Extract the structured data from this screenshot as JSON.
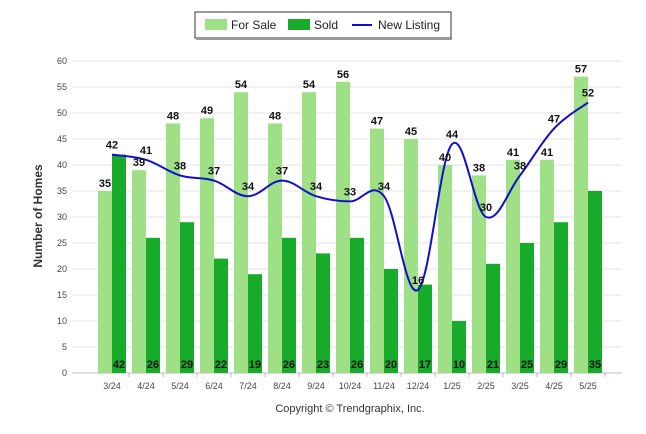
{
  "chart_data": {
    "type": "bar",
    "categories": [
      "3/24",
      "4/24",
      "5/24",
      "6/24",
      "7/24",
      "8/24",
      "9/24",
      "10/24",
      "11/24",
      "12/24",
      "1/25",
      "2/25",
      "3/25",
      "4/25",
      "5/25"
    ],
    "series": [
      {
        "name": "For Sale",
        "kind": "bar",
        "color": "#9fdf86",
        "values": [
          35,
          39,
          48,
          49,
          54,
          48,
          54,
          56,
          47,
          45,
          40,
          38,
          41,
          41,
          57
        ]
      },
      {
        "name": "Sold",
        "kind": "bar",
        "color": "#18aa2a",
        "values": [
          42,
          26,
          29,
          22,
          19,
          26,
          23,
          26,
          20,
          17,
          10,
          21,
          25,
          29,
          35
        ]
      },
      {
        "name": "New Listing",
        "kind": "line",
        "color": "#1010cc",
        "values": [
          42,
          41,
          38,
          37,
          34,
          37,
          34,
          33,
          34,
          16,
          44,
          30,
          38,
          47,
          52
        ]
      }
    ],
    "ylabel": "Number of Homes",
    "xlabel": "",
    "ylim": [
      0,
      60
    ],
    "yticks": [
      0,
      5,
      10,
      15,
      20,
      25,
      30,
      35,
      40,
      45,
      50,
      55,
      60
    ],
    "grid": true,
    "legend_position": "top-center",
    "credit": "Copyright © Trendgraphix, Inc."
  }
}
